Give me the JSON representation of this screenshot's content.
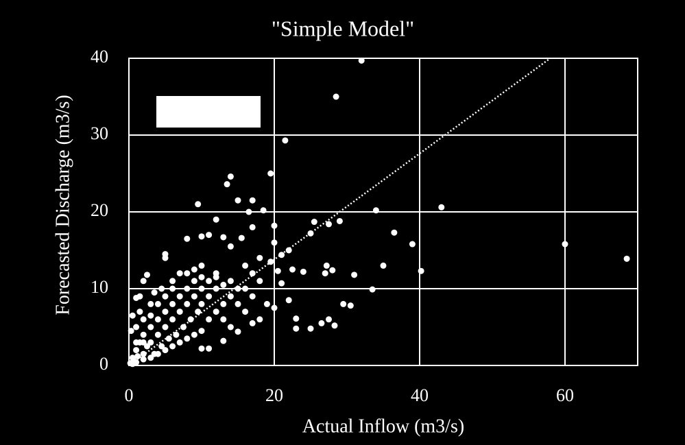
{
  "chart_data": {
    "type": "scatter",
    "title": "\"Simple  Model\"",
    "x_label": "Actual Inflow (m3/s)",
    "y_label": "Forecasted Discharge (m3/s)",
    "xlim": [
      0,
      70
    ],
    "ylim": [
      0,
      40
    ],
    "xticks": [
      0,
      20,
      40,
      60
    ],
    "yticks": [
      0,
      10,
      20,
      30,
      40
    ],
    "grid": true,
    "color": "#ffffff",
    "trendline": {
      "slope": 0.69,
      "intercept": 0,
      "style": "dotted"
    },
    "x": [
      32,
      28.5,
      21.5,
      19.5,
      14,
      13.5,
      15,
      17,
      9.5,
      18.5,
      20,
      34,
      43,
      60,
      68.5,
      39,
      36.5,
      40.2,
      35,
      31,
      33.5,
      29.5,
      30.5,
      28.3,
      27.5,
      26.5,
      25,
      23,
      23,
      22,
      21,
      24,
      27,
      28,
      27.2,
      29,
      27.5,
      25.5,
      25,
      22,
      21,
      22.5,
      20.5,
      20,
      19.5,
      18,
      17,
      16.5,
      15.5,
      16,
      14,
      13,
      12,
      11,
      10,
      8,
      5,
      5,
      2.5,
      2,
      1,
      1.5,
      12,
      10,
      17,
      18,
      19,
      20,
      16,
      15,
      13,
      11,
      10,
      17,
      18,
      0.2,
      0.5,
      0.8,
      1,
      1.2,
      1.5,
      2,
      2,
      2.5,
      3,
      3,
      3.5,
      4,
      4,
      4.5,
      5,
      5,
      5.5,
      6,
      6,
      6.5,
      7,
      7,
      7.5,
      8,
      8,
      8.5,
      9,
      9,
      9.5,
      10,
      10,
      11,
      11,
      12,
      12,
      13,
      13,
      14,
      14,
      15,
      15,
      0.3,
      0.5,
      1,
      1.5,
      2,
      3,
      3.5,
      4.5,
      6,
      7,
      0.5,
      1,
      2,
      3,
      4,
      5,
      6,
      7,
      8,
      9,
      10,
      1,
      2,
      3,
      4,
      5,
      6,
      8,
      9,
      10,
      11,
      12,
      13,
      14,
      16,
      17
    ],
    "values": [
      39.7,
      35,
      29.3,
      25,
      24.6,
      23.6,
      21.5,
      21.5,
      21,
      20.2,
      18.2,
      20.2,
      20.6,
      15.8,
      13.9,
      15.8,
      17.3,
      12.3,
      13,
      11.8,
      9.9,
      8,
      7.8,
      5.2,
      6,
      5.5,
      4.8,
      4.8,
      6.1,
      8.5,
      10.7,
      12.2,
      12,
      12.4,
      13,
      18.8,
      18.4,
      18.7,
      17.2,
      15,
      14.4,
      12.5,
      12.3,
      16,
      13.5,
      14,
      18,
      20,
      16.6,
      13,
      15.5,
      16.7,
      19,
      17,
      16.8,
      16.5,
      14.5,
      14,
      11.8,
      11,
      8.8,
      9,
      12,
      13,
      9,
      11,
      8,
      7.5,
      7,
      4.4,
      3.2,
      2.2,
      2.2,
      5.5,
      6,
      0.3,
      1,
      0.5,
      2,
      1.2,
      3,
      1.5,
      4,
      2.5,
      5,
      3,
      1.5,
      6,
      4,
      2.5,
      7,
      5,
      3.5,
      8,
      6,
      4,
      9,
      7,
      5,
      10,
      8,
      6,
      11,
      9,
      7,
      10,
      8,
      9,
      6,
      10,
      7,
      8,
      6,
      9,
      5,
      8,
      10,
      4.5,
      6.5,
      5,
      7,
      6,
      8,
      9.5,
      10,
      11,
      12,
      0.2,
      0.4,
      0.8,
      1,
      1.5,
      2,
      2.5,
      3,
      3.5,
      4,
      4.5,
      3,
      3,
      6.5,
      8,
      9,
      10,
      12,
      12.5,
      11.5,
      11,
      11.5,
      10.5,
      11,
      10,
      12
    ]
  }
}
